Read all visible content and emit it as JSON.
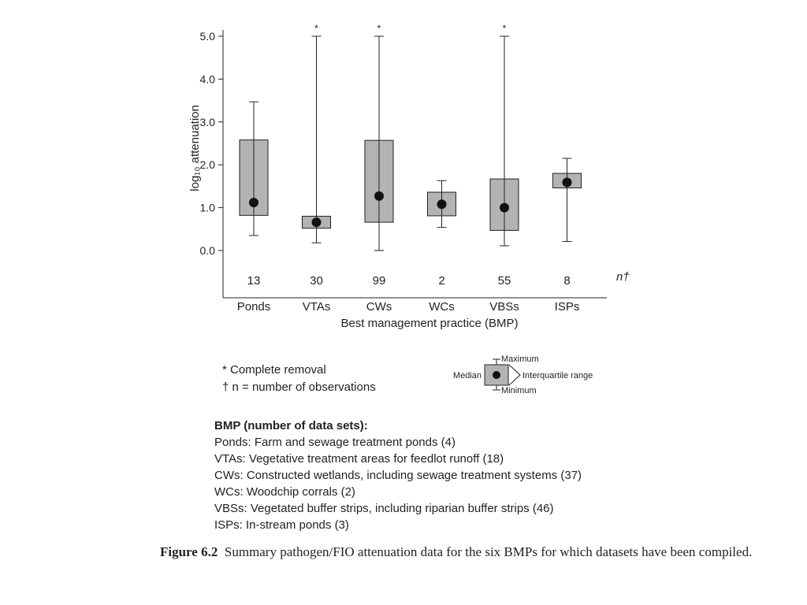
{
  "chart_data": {
    "type": "boxplot",
    "ylabel": "log₁₀ attenuation",
    "ylim": [
      0,
      5
    ],
    "yticks": [
      "0.0",
      "1.0",
      "2.0",
      "3.0",
      "4.0",
      "5.0"
    ],
    "xlabel": "Best management practice (BMP)",
    "n_label": "n†",
    "categories": [
      "Ponds",
      "VTAs",
      "CWs",
      "WCs",
      "VBSs",
      "ISPs"
    ],
    "n": [
      "13",
      "30",
      "99",
      "2",
      "55",
      "8"
    ],
    "series": [
      {
        "category": "Ponds",
        "min": 0.35,
        "q1": 0.82,
        "median": 1.12,
        "q3": 2.58,
        "max": 3.47,
        "complete_removal": false
      },
      {
        "category": "VTAs",
        "min": 0.18,
        "q1": 0.52,
        "median": 0.66,
        "q3": 0.8,
        "max": 5.0,
        "complete_removal": true
      },
      {
        "category": "CWs",
        "min": 0.0,
        "q1": 0.66,
        "median": 1.27,
        "q3": 2.57,
        "max": 5.0,
        "complete_removal": true
      },
      {
        "category": "WCs",
        "min": 0.54,
        "q1": 0.81,
        "median": 1.08,
        "q3": 1.36,
        "max": 1.63,
        "complete_removal": false
      },
      {
        "category": "VBSs",
        "min": 0.11,
        "q1": 0.47,
        "median": 1.0,
        "q3": 1.67,
        "max": 5.0,
        "complete_removal": true
      },
      {
        "category": "ISPs",
        "min": 0.21,
        "q1": 1.46,
        "median": 1.59,
        "q3": 1.8,
        "max": 2.15,
        "complete_removal": false
      }
    ],
    "removal_marker": "*",
    "legend": {
      "complete_removal": "* Complete removal",
      "n_def": "† n = number of observations",
      "key_median": "Median",
      "key_maximum": "Maximum",
      "key_iqr": "Interquartile range",
      "key_minimum": "Minimum"
    },
    "colors": {
      "box_fill": "#b3b3b3",
      "line": "#222222",
      "median_dot": "#111111"
    }
  },
  "bmp_list": {
    "heading": "BMP (number of data sets):",
    "items": [
      "Ponds: Farm and sewage treatment ponds (4)",
      "VTAs: Vegetative treatment areas for feedlot runoff (18)",
      "CWs: Constructed wetlands, including sewage treatment systems (37)",
      "WCs: Woodchip corrals (2)",
      "VBSs: Vegetated buffer strips, including riparian buffer strips (46)",
      "ISPs: In-stream ponds (3)"
    ]
  },
  "caption": {
    "label": "Figure 6.2",
    "text": "Summary pathogen/FIO attenuation data for the six BMPs for which datasets have been compiled."
  }
}
